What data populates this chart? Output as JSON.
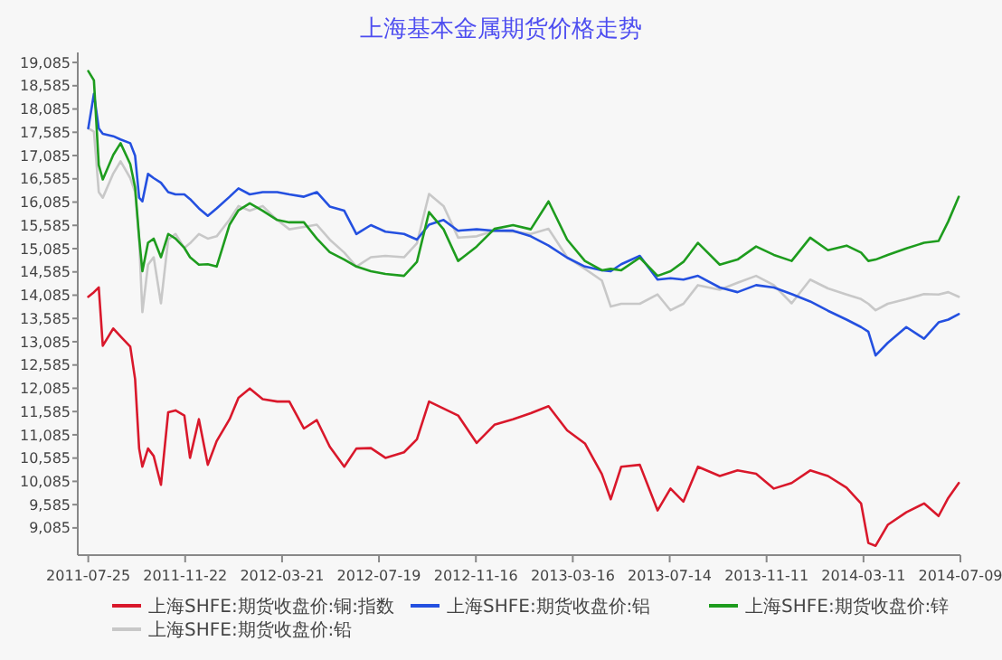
{
  "chart_data": {
    "type": "line",
    "title": "上海基本金属期货价格走势",
    "x": [
      "2011-07-25",
      "2011-08-01",
      "2011-08-07",
      "2011-08-12",
      "2011-08-25",
      "2011-09-03",
      "2011-09-15",
      "2011-09-21",
      "2011-09-26",
      "2011-09-30",
      "2011-10-07",
      "2011-10-14",
      "2011-10-23",
      "2011-11-01",
      "2011-11-10",
      "2011-11-21",
      "2011-11-28",
      "2011-12-09",
      "2011-12-20",
      "2011-12-31",
      "2012-01-16",
      "2012-01-27",
      "2012-02-10",
      "2012-02-26",
      "2012-03-15",
      "2012-03-30",
      "2012-04-17",
      "2012-05-03",
      "2012-05-19",
      "2012-06-06",
      "2012-06-21",
      "2012-07-09",
      "2012-07-27",
      "2012-08-19",
      "2012-09-04",
      "2012-09-19",
      "2012-10-07",
      "2012-10-25",
      "2012-11-17",
      "2012-12-09",
      "2013-01-01",
      "2013-01-23",
      "2013-02-14",
      "2013-03-09",
      "2013-03-31",
      "2013-04-21",
      "2013-05-02",
      "2013-05-15",
      "2013-06-07",
      "2013-06-29",
      "2013-07-15",
      "2013-07-31",
      "2013-08-18",
      "2013-09-14",
      "2013-10-06",
      "2013-10-29",
      "2013-11-20",
      "2013-12-12",
      "2014-01-04",
      "2014-01-26",
      "2014-02-18",
      "2014-03-08",
      "2014-03-17",
      "2014-03-26",
      "2014-04-10",
      "2014-05-03",
      "2014-05-25",
      "2014-06-12",
      "2014-06-24",
      "2014-07-07"
    ],
    "xlim": [
      "2011-07-12",
      "2014-07-09"
    ],
    "xticks": [
      "2011-07-25",
      "2011-11-22",
      "2012-03-21",
      "2012-07-19",
      "2012-11-16",
      "2013-03-16",
      "2013-07-14",
      "2013-11-11",
      "2014-03-11",
      "2014-07-09"
    ],
    "ylim": [
      8500,
      19300
    ],
    "yticks": [
      {
        "value": 9085,
        "label": "9,085"
      },
      {
        "value": 9585,
        "label": "9,585"
      },
      {
        "value": 10085,
        "label": "10,085"
      },
      {
        "value": 10585,
        "label": "10,585"
      },
      {
        "value": 11085,
        "label": "11,085"
      },
      {
        "value": 11585,
        "label": "11,585"
      },
      {
        "value": 12085,
        "label": "12,085"
      },
      {
        "value": 12585,
        "label": "12,585"
      },
      {
        "value": 13085,
        "label": "13,085"
      },
      {
        "value": 13585,
        "label": "13,585"
      },
      {
        "value": 14085,
        "label": "14,085"
      },
      {
        "value": 14585,
        "label": "14,585"
      },
      {
        "value": 15085,
        "label": "15,085"
      },
      {
        "value": 15585,
        "label": "15,585"
      },
      {
        "value": 16085,
        "label": "16,085"
      },
      {
        "value": 16585,
        "label": "16,585"
      },
      {
        "value": 17085,
        "label": "17,085"
      },
      {
        "value": 17585,
        "label": "17,585"
      },
      {
        "value": 18085,
        "label": "18,085"
      },
      {
        "value": 18585,
        "label": "18,585"
      },
      {
        "value": 19085,
        "label": "19,085"
      }
    ],
    "legend": "bottom",
    "series": [
      {
        "name": "上海SHFE:期货收盘价:铅",
        "color": "#c8c8c8",
        "values": [
          17670,
          17600,
          16300,
          16180,
          16700,
          16960,
          16600,
          16300,
          15280,
          13720,
          14740,
          14900,
          13910,
          15280,
          15400,
          15100,
          15200,
          15400,
          15300,
          15350,
          15710,
          16000,
          15900,
          16000,
          15700,
          15500,
          15550,
          15600,
          15280,
          15000,
          14700,
          14900,
          14930,
          14900,
          15200,
          16260,
          16000,
          15320,
          15350,
          15470,
          15450,
          15400,
          15510,
          14900,
          14650,
          14400,
          13840,
          13900,
          13900,
          14100,
          13760,
          13900,
          14300,
          14200,
          14350,
          14500,
          14300,
          13910,
          14420,
          14230,
          14100,
          14000,
          13900,
          13760,
          13900,
          14000,
          14110,
          14100,
          14150,
          14050
        ]
      },
      {
        "name": "上海SHFE:期货收盘价:铜:指数",
        "color": "#d9182b",
        "values": [
          14050,
          14150,
          14250,
          13000,
          13370,
          13200,
          12980,
          12280,
          10790,
          10400,
          10790,
          10630,
          10010,
          11570,
          11610,
          11500,
          10590,
          11420,
          10440,
          10950,
          11420,
          11880,
          12080,
          11850,
          11800,
          11800,
          11220,
          11400,
          10830,
          10400,
          10790,
          10800,
          10590,
          10710,
          10990,
          11800,
          11650,
          11500,
          10910,
          11300,
          11420,
          11550,
          11700,
          11180,
          10900,
          10240,
          9700,
          10400,
          10440,
          9460,
          9930,
          9650,
          10400,
          10200,
          10320,
          10250,
          9930,
          10050,
          10320,
          10200,
          9950,
          9610,
          8760,
          8700,
          9150,
          9420,
          9610,
          9340,
          9730,
          10050
        ]
      },
      {
        "name": "上海SHFE:期货收盘价:铝",
        "color": "#2450e0",
        "values": [
          17670,
          18410,
          17670,
          17550,
          17500,
          17430,
          17350,
          17080,
          16180,
          16100,
          16690,
          16600,
          16500,
          16300,
          16250,
          16250,
          16150,
          15950,
          15790,
          15950,
          16200,
          16380,
          16250,
          16300,
          16300,
          16250,
          16200,
          16300,
          15990,
          15900,
          15400,
          15590,
          15450,
          15400,
          15280,
          15600,
          15700,
          15470,
          15500,
          15470,
          15470,
          15350,
          15150,
          14890,
          14700,
          14620,
          14600,
          14750,
          14930,
          14420,
          14450,
          14420,
          14500,
          14250,
          14150,
          14300,
          14250,
          14110,
          13950,
          13750,
          13560,
          13400,
          13300,
          12790,
          13060,
          13400,
          13150,
          13500,
          13560,
          13680
        ]
      },
      {
        "name": "上海SHFE:期货收盘价:锌",
        "color": "#1e9c1e",
        "values": [
          18900,
          18700,
          16880,
          16570,
          17100,
          17350,
          16900,
          16400,
          15320,
          14600,
          15210,
          15300,
          14900,
          15400,
          15300,
          15100,
          14900,
          14740,
          14750,
          14700,
          15600,
          15910,
          16060,
          15900,
          15700,
          15650,
          15650,
          15300,
          15010,
          14850,
          14700,
          14600,
          14540,
          14500,
          14800,
          15870,
          15500,
          14820,
          15130,
          15510,
          15590,
          15500,
          16100,
          15280,
          14820,
          14620,
          14650,
          14620,
          14890,
          14500,
          14600,
          14800,
          15210,
          14740,
          14850,
          15130,
          14950,
          14820,
          15320,
          15050,
          15150,
          15000,
          14820,
          14850,
          14950,
          15090,
          15210,
          15250,
          15670,
          16200
        ]
      }
    ]
  }
}
